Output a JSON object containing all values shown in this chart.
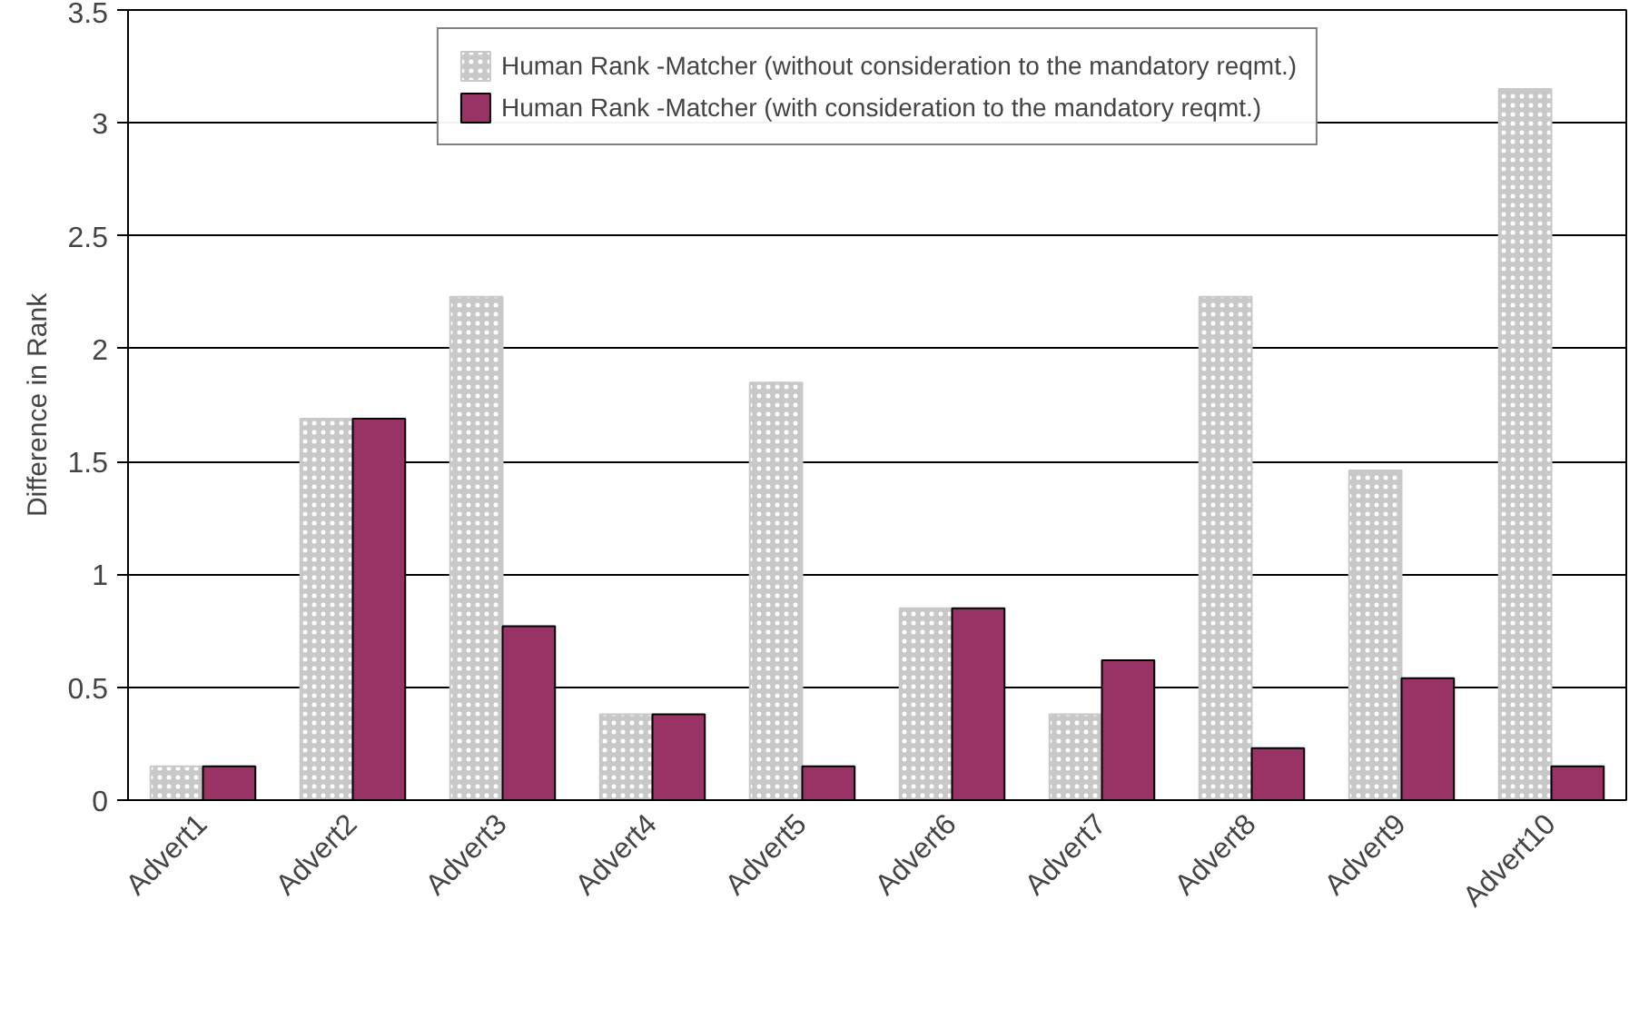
{
  "chart_data": {
    "type": "bar",
    "ylabel": "Difference in Rank",
    "categories": [
      "Advert1",
      "Advert2",
      "Advert3",
      "Advert4",
      "Advert5",
      "Advert6",
      "Advert7",
      "Advert8",
      "Advert9",
      "Advert10"
    ],
    "series": [
      {
        "name": "Human Rank -Matcher (without consideration to the mandatory reqmt.)",
        "color": "#c8c8c8",
        "values": [
          0.15,
          1.69,
          2.23,
          0.38,
          1.85,
          0.85,
          0.38,
          2.23,
          1.46,
          3.15
        ]
      },
      {
        "name": "Human Rank -Matcher (with consideration to the mandatory reqmt.)",
        "color": "#993366",
        "values": [
          0.15,
          1.69,
          0.77,
          0.38,
          0.15,
          0.85,
          0.62,
          0.23,
          0.54,
          0.15
        ]
      }
    ],
    "ylim": [
      0,
      3.5
    ],
    "yticks": [
      0,
      0.5,
      1,
      1.5,
      2,
      2.5,
      3,
      3.5
    ],
    "grid": "y",
    "legend": "top"
  }
}
